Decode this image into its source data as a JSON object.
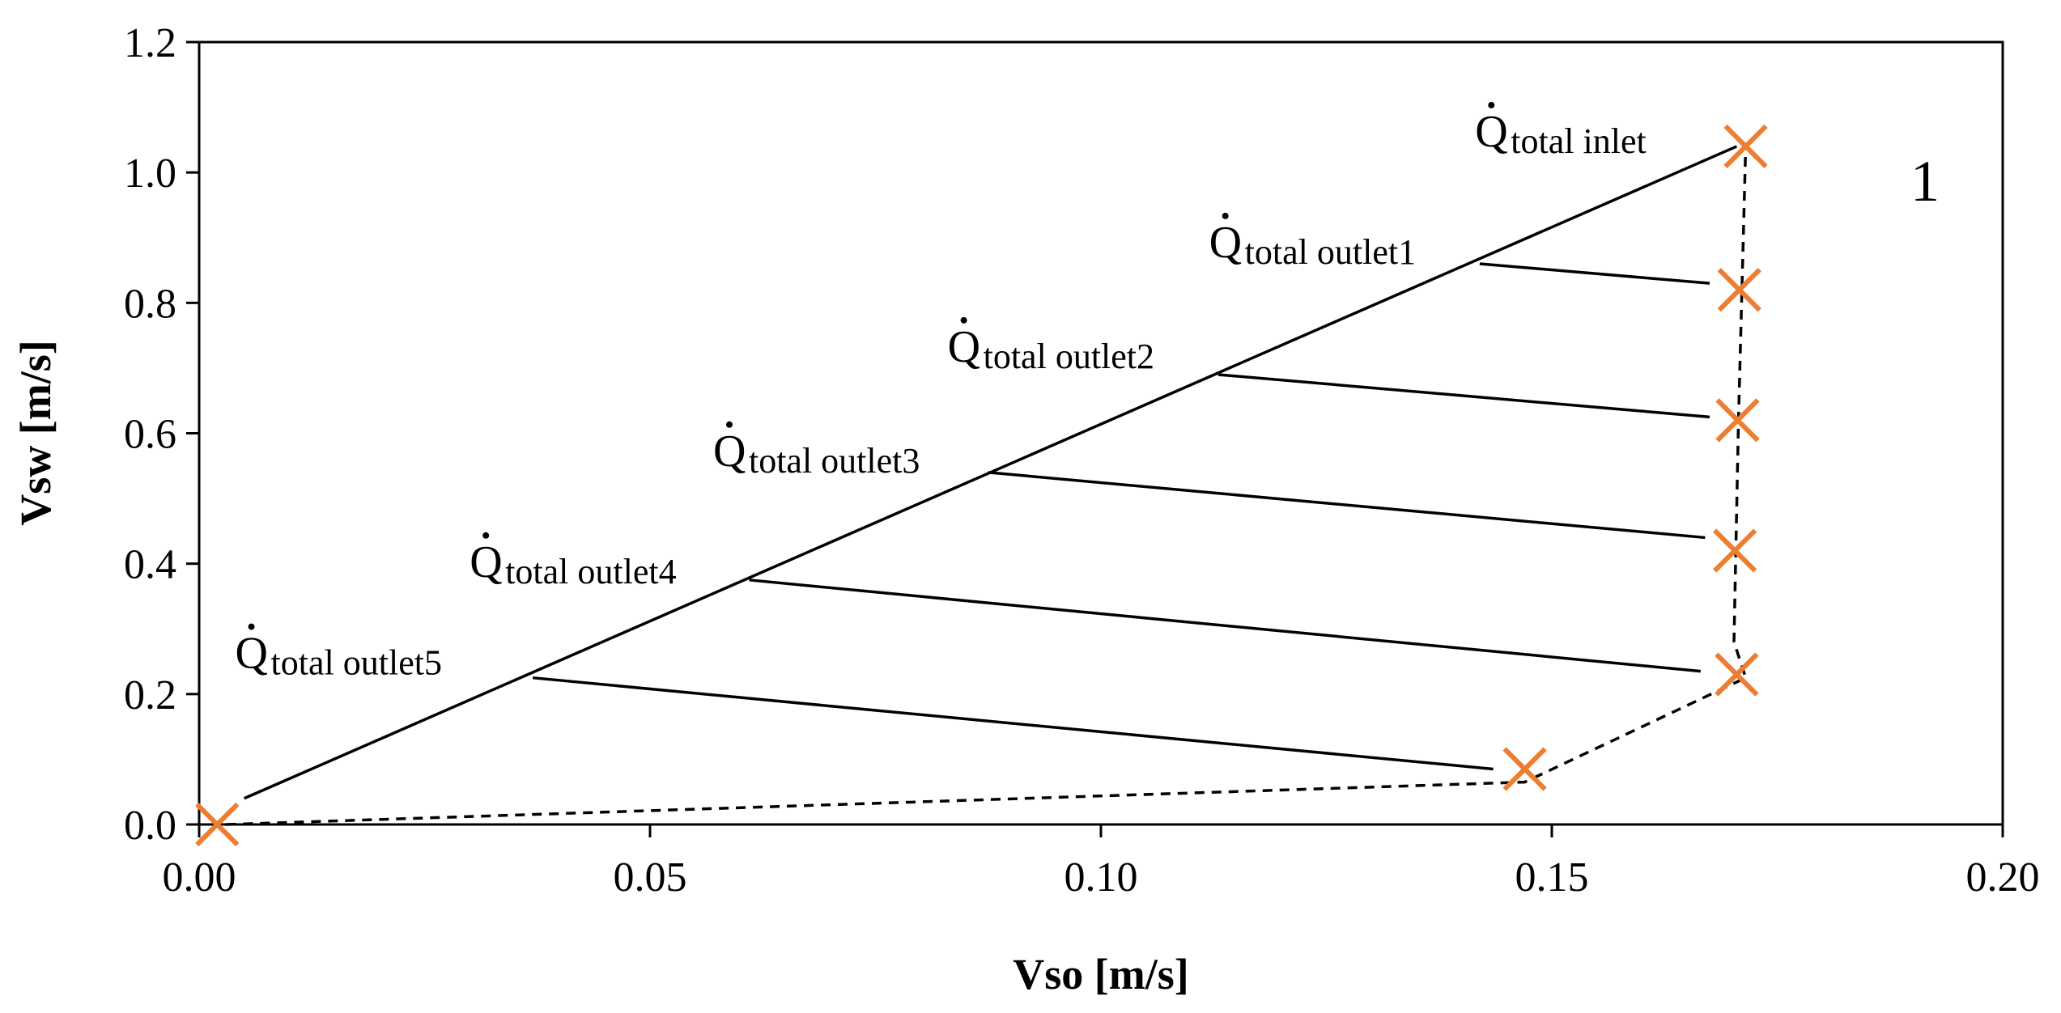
{
  "chart_data": {
    "type": "scatter",
    "title": "",
    "panel_label": "1",
    "xlabel": "Vso [m/s]",
    "ylabel": "Vsw [m/s]",
    "xlim": [
      0,
      0.2
    ],
    "ylim": [
      0,
      1.2
    ],
    "xticks": [
      "0.00",
      "0.05",
      "0.10",
      "0.15",
      "0.20"
    ],
    "xtick_values": [
      0,
      0.05,
      0.1,
      0.15,
      0.2
    ],
    "yticks": [
      "0.0",
      "0.2",
      "0.4",
      "0.6",
      "0.8",
      "1.0",
      "1.2"
    ],
    "ytick_values": [
      0,
      0.2,
      0.4,
      0.6,
      0.8,
      1.0,
      1.2
    ],
    "marker_color": "#ED7D31",
    "line_color": "#000000",
    "points": [
      {
        "x": 0.002,
        "y": 0.0
      },
      {
        "x": 0.147,
        "y": 0.085
      },
      {
        "x": 0.1705,
        "y": 0.23
      },
      {
        "x": 0.1703,
        "y": 0.42
      },
      {
        "x": 0.1706,
        "y": 0.62
      },
      {
        "x": 0.1708,
        "y": 0.82
      },
      {
        "x": 0.1715,
        "y": 1.04
      }
    ],
    "dashed_connector": [
      {
        "x": 0.003,
        "y": 0.0
      },
      {
        "x": 0.147,
        "y": 0.065
      },
      {
        "x": 0.1715,
        "y": 0.225
      },
      {
        "x": 0.1702,
        "y": 0.28
      },
      {
        "x": 0.1707,
        "y": 0.62
      },
      {
        "x": 0.1715,
        "y": 1.04
      }
    ],
    "diagonal_line": [
      {
        "x": 0.005,
        "y": 0.04
      },
      {
        "x": 0.1705,
        "y": 1.04
      }
    ],
    "tie_lines": [
      {
        "from": {
          "x": 0.142,
          "y": 0.86
        },
        "to": {
          "x": 0.1675,
          "y": 0.83
        }
      },
      {
        "from": {
          "x": 0.113,
          "y": 0.69
        },
        "to": {
          "x": 0.1675,
          "y": 0.625
        }
      },
      {
        "from": {
          "x": 0.0875,
          "y": 0.54
        },
        "to": {
          "x": 0.167,
          "y": 0.44
        }
      },
      {
        "from": {
          "x": 0.061,
          "y": 0.375
        },
        "to": {
          "x": 0.1665,
          "y": 0.235
        }
      },
      {
        "from": {
          "x": 0.037,
          "y": 0.225
        },
        "to": {
          "x": 0.1435,
          "y": 0.085
        }
      }
    ],
    "annotations": [
      {
        "symbol": "Q",
        "subscript": "total inlet",
        "x": 0.1415,
        "y": 1.04
      },
      {
        "symbol": "Q",
        "subscript": "total outlet1",
        "x": 0.112,
        "y": 0.87
      },
      {
        "symbol": "Q",
        "subscript": "total outlet2",
        "x": 0.083,
        "y": 0.71
      },
      {
        "symbol": "Q",
        "subscript": "total outlet3",
        "x": 0.057,
        "y": 0.55
      },
      {
        "symbol": "Q",
        "subscript": "total outlet4",
        "x": 0.03,
        "y": 0.38
      },
      {
        "symbol": "Q",
        "subscript": "total outlet5",
        "x": 0.004,
        "y": 0.24
      }
    ]
  }
}
